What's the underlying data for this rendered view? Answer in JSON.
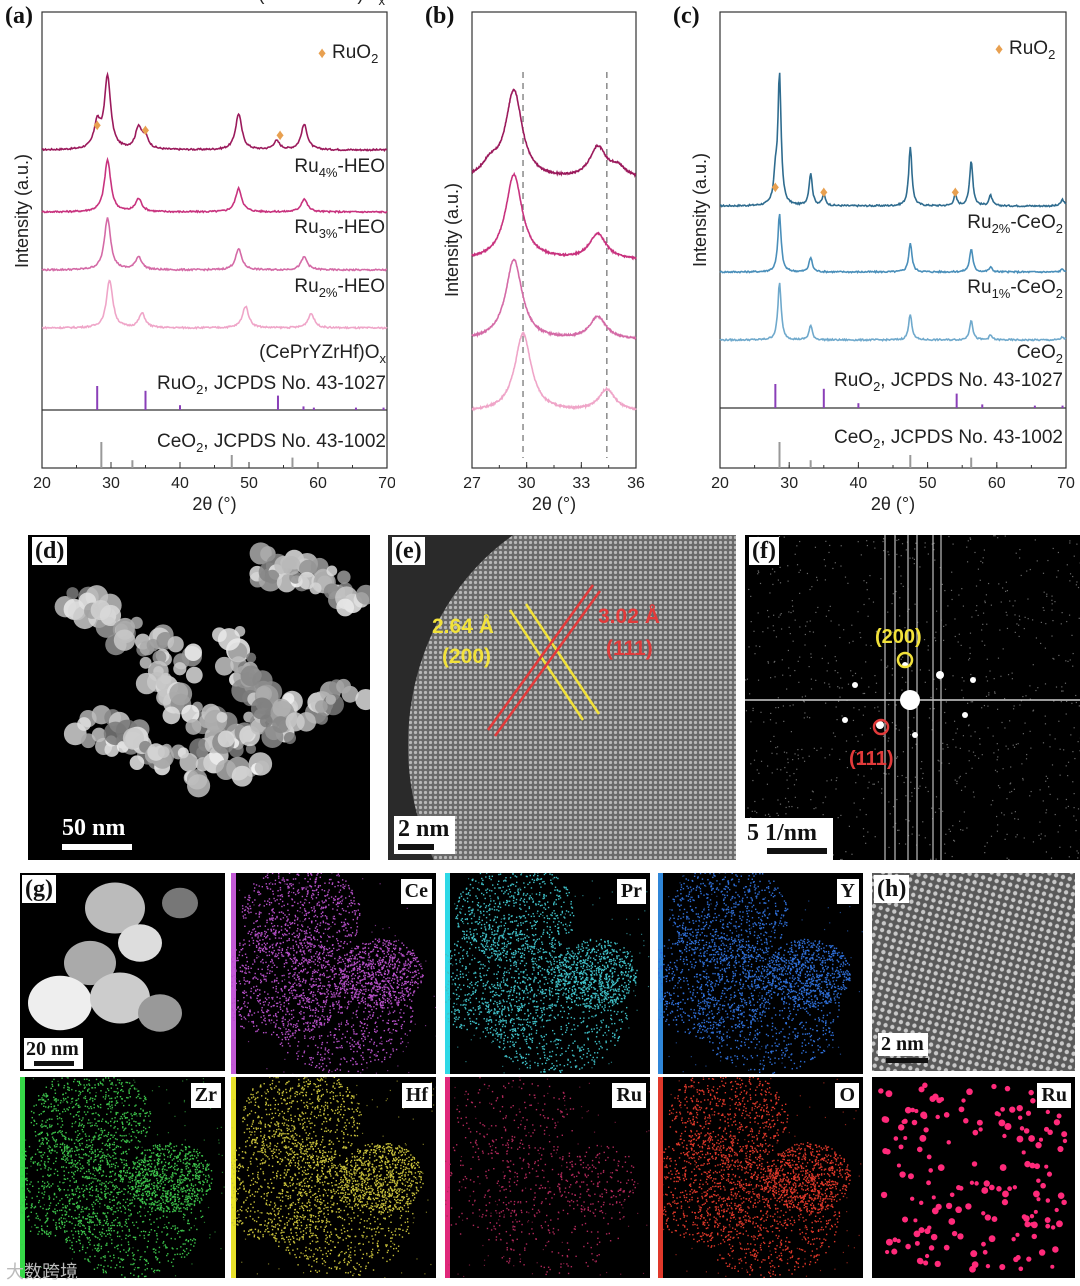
{
  "figure": {
    "panel_labels": [
      "(a)",
      "(b)",
      "(c)",
      "(d)",
      "(e)",
      "(f)",
      "(g)",
      "(h)"
    ],
    "watermark": "大数跨境"
  },
  "chart_data": [
    {
      "panel": "(a)",
      "type": "line",
      "xlabel": "2θ (°)",
      "ylabel": "Intensity (a.u.)",
      "xlim": [
        20,
        70
      ],
      "xticks": [
        20,
        30,
        40,
        50,
        60,
        70
      ],
      "legend": {
        "marker": "♦",
        "label": "RuO₂",
        "color": "#e8a050"
      },
      "series": [
        {
          "name": "Ru₄%-HEO",
          "color": "#9b1a5c",
          "peaks": [
            [
              28.0,
              0.35
            ],
            [
              29.5,
              1.0
            ],
            [
              34.0,
              0.3
            ],
            [
              35.0,
              0.15
            ],
            [
              48.5,
              0.5
            ],
            [
              54.0,
              0.12
            ],
            [
              58.0,
              0.35
            ]
          ]
        },
        {
          "name": "Ru₃%-HEO",
          "color": "#c8327e",
          "peaks": [
            [
              29.5,
              1.0
            ],
            [
              34.0,
              0.25
            ],
            [
              48.5,
              0.45
            ],
            [
              58.0,
              0.25
            ]
          ]
        },
        {
          "name": "Ru₂%-HEO",
          "color": "#d46aa6",
          "peaks": [
            [
              29.5,
              1.0
            ],
            [
              34.0,
              0.25
            ],
            [
              48.5,
              0.4
            ],
            [
              58.0,
              0.25
            ]
          ]
        },
        {
          "name": "(CePrYZrHf)Oₓ",
          "color": "#efa5c8",
          "peaks": [
            [
              29.8,
              1.0
            ],
            [
              34.5,
              0.3
            ],
            [
              49.5,
              0.45
            ],
            [
              59.0,
              0.3
            ]
          ]
        }
      ],
      "ruo2_markers": [
        28.0,
        35.0,
        54.5
      ],
      "references": [
        {
          "name": "RuO₂, JCPDS No. 43-1027",
          "color": "#8a3fb8",
          "lines": [
            [
              28.0,
              1.0
            ],
            [
              35.0,
              0.8
            ],
            [
              40.0,
              0.2
            ],
            [
              54.2,
              0.6
            ],
            [
              57.9,
              0.15
            ],
            [
              59.4,
              0.1
            ],
            [
              65.5,
              0.1
            ],
            [
              69.5,
              0.1
            ]
          ]
        },
        {
          "name": "CeO₂, JCPDS No. 43-1002",
          "color": "#999999",
          "lines": [
            [
              28.6,
              1.0
            ],
            [
              33.1,
              0.3
            ],
            [
              47.5,
              0.5
            ],
            [
              56.3,
              0.4
            ]
          ]
        }
      ]
    },
    {
      "panel": "(b)",
      "type": "line",
      "xlabel": "2θ (°)",
      "ylabel": "Intensity (a.u.)",
      "xlim": [
        27,
        36
      ],
      "xticks": [
        27,
        30,
        33,
        36
      ],
      "dashed_lines": [
        29.8,
        34.4
      ],
      "series": [
        {
          "color": "#9b1a5c",
          "peaks": [
            [
              28.0,
              0.15
            ],
            [
              29.3,
              1.0
            ],
            [
              33.9,
              0.35
            ],
            [
              35.0,
              0.12
            ]
          ]
        },
        {
          "color": "#c8327e",
          "peaks": [
            [
              29.3,
              1.0
            ],
            [
              33.9,
              0.3
            ]
          ]
        },
        {
          "color": "#d46aa6",
          "peaks": [
            [
              29.3,
              1.0
            ],
            [
              33.9,
              0.28
            ]
          ]
        },
        {
          "color": "#efa5c8",
          "peaks": [
            [
              29.8,
              1.0
            ],
            [
              34.4,
              0.28
            ]
          ]
        }
      ]
    },
    {
      "panel": "(c)",
      "type": "line",
      "xlabel": "2θ (°)",
      "ylabel": "Intensity (a.u.)",
      "xlim": [
        20,
        70
      ],
      "xticks": [
        20,
        30,
        40,
        50,
        60,
        70
      ],
      "legend": {
        "marker": "♦",
        "label": "RuO₂",
        "color": "#e8a050"
      },
      "series": [
        {
          "name": "Ru₂%-CeO₂",
          "color": "#2f6c8f",
          "peaks": [
            [
              28.0,
              0.2
            ],
            [
              28.6,
              1.0
            ],
            [
              33.1,
              0.25
            ],
            [
              35.0,
              0.08
            ],
            [
              47.5,
              0.45
            ],
            [
              54.0,
              0.08
            ],
            [
              56.3,
              0.35
            ],
            [
              59.1,
              0.08
            ],
            [
              69.5,
              0.05
            ]
          ]
        },
        {
          "name": "Ru₁%-CeO₂",
          "color": "#4a8fba",
          "peaks": [
            [
              28.6,
              1.0
            ],
            [
              33.1,
              0.25
            ],
            [
              47.5,
              0.5
            ],
            [
              56.3,
              0.4
            ],
            [
              59.1,
              0.08
            ],
            [
              69.5,
              0.05
            ]
          ]
        },
        {
          "name": "CeO₂",
          "color": "#6fa9cc",
          "peaks": [
            [
              28.6,
              1.0
            ],
            [
              33.1,
              0.25
            ],
            [
              47.5,
              0.45
            ],
            [
              56.3,
              0.35
            ],
            [
              59.1,
              0.08
            ],
            [
              69.5,
              0.05
            ]
          ]
        }
      ],
      "ruo2_markers": [
        28.0,
        35.0,
        54.0
      ],
      "references": [
        {
          "name": "RuO₂, JCPDS No. 43-1027",
          "color": "#8a3fb8",
          "lines": [
            [
              28.0,
              1.0
            ],
            [
              35.0,
              0.8
            ],
            [
              40.0,
              0.2
            ],
            [
              54.2,
              0.6
            ],
            [
              57.9,
              0.15
            ],
            [
              65.5,
              0.1
            ],
            [
              69.5,
              0.1
            ]
          ]
        },
        {
          "name": "CeO₂, JCPDS No. 43-1002",
          "color": "#999999",
          "lines": [
            [
              28.6,
              1.0
            ],
            [
              33.1,
              0.3
            ],
            [
              47.5,
              0.5
            ],
            [
              56.3,
              0.4
            ]
          ]
        }
      ]
    }
  ],
  "micrographs": {
    "d": {
      "scale_label": "50 nm"
    },
    "e": {
      "scale_label": "2 nm",
      "annotations": [
        {
          "text_line1": "2.64 Å",
          "text_line2": "(200)",
          "color": "#f2e23a"
        },
        {
          "text_line1": "3.02 Å",
          "text_line2": "(111)",
          "color": "#e23a3a"
        }
      ]
    },
    "f": {
      "scale_label": "5 1/nm",
      "spots": [
        {
          "label": "(200)",
          "color": "#f2e23a"
        },
        {
          "label": "(111)",
          "color": "#e23a3a"
        }
      ]
    },
    "g": {
      "scale_label": "20 nm"
    },
    "h": {
      "scale_label": "2 nm"
    },
    "maps": [
      {
        "element": "Ce",
        "color": "#b64fc8",
        "bar": "#c35ad6"
      },
      {
        "element": "Pr",
        "color": "#3fc0c8",
        "bar": "#2ed8e6"
      },
      {
        "element": "Y",
        "color": "#2f6fd8",
        "bar": "#2f86d8"
      },
      {
        "element": "Zr",
        "color": "#3cc24a",
        "bar": "#36d948"
      },
      {
        "element": "Hf",
        "color": "#c8c03a",
        "bar": "#e6e02a"
      },
      {
        "element": "Ru",
        "color": "#b0285a",
        "bar": "#e0287a"
      },
      {
        "element": "O",
        "color": "#e0382a",
        "bar": "#e0382a"
      }
    ],
    "h_map": {
      "element": "Ru",
      "color": "#ff2a7a"
    }
  }
}
